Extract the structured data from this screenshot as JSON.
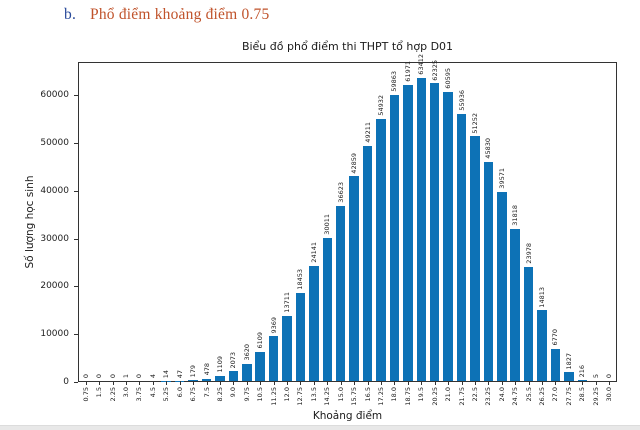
{
  "heading": {
    "marker": "b.",
    "text": "Phổ điểm khoảng điểm 0.75"
  },
  "chart_data": {
    "type": "bar",
    "title": "Biểu đồ phổ điểm thi THPT tổ hợp D01",
    "xlabel": "Khoảng điểm",
    "ylabel": "Số lượng học sinh",
    "categories": [
      "0.75",
      "1.5",
      "2.25",
      "3.0",
      "3.75",
      "4.5",
      "5.25",
      "6.0",
      "6.75",
      "7.5",
      "8.25",
      "9.0",
      "9.75",
      "10.5",
      "11.25",
      "12.0",
      "12.75",
      "13.5",
      "14.25",
      "15.0",
      "15.75",
      "16.5",
      "17.25",
      "18.0",
      "18.75",
      "19.5",
      "20.25",
      "21.0",
      "21.75",
      "22.5",
      "23.25",
      "24.0",
      "24.75",
      "25.5",
      "26.25",
      "27.0",
      "27.75",
      "28.5",
      "29.25",
      "30.0"
    ],
    "values": [
      0,
      0,
      0,
      1,
      0,
      4,
      14,
      47,
      179,
      478,
      1109,
      2073,
      3620,
      6109,
      9369,
      13711,
      18453,
      24141,
      30011,
      36623,
      42859,
      49211,
      54932,
      59863,
      61971,
      63412,
      62325,
      60595,
      55936,
      51252,
      45830,
      39571,
      31818,
      23978,
      14813,
      6770,
      1827,
      216,
      5,
      0
    ],
    "ylim": [
      0,
      67000
    ],
    "yticks": [
      0,
      10000,
      20000,
      30000,
      40000,
      50000,
      60000
    ],
    "bar_color": "#0d72b6",
    "grid": false,
    "legend_position": "none",
    "value_labels": "rotated-90-above-bars"
  },
  "colors": {
    "heading_marker": "#2a4b9b",
    "heading_text": "#c0532b",
    "bar": "#0d72b6",
    "axis": "#333333"
  }
}
